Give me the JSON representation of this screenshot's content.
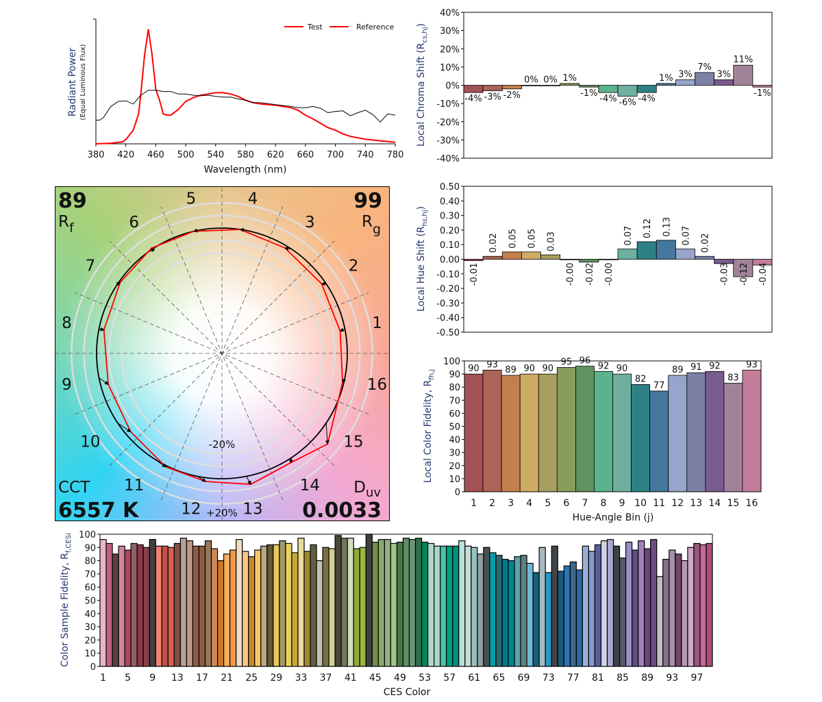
{
  "chart_data": [
    {
      "type": "line",
      "xlabel": "Wavelength (nm)",
      "ylabel": "Radiant Power",
      "ylabel_sub": "(Equal Luminous Flux)",
      "xlim": [
        380,
        780
      ],
      "x_ticks": [
        "380",
        "420",
        "460",
        "500",
        "540",
        "580",
        "620",
        "660",
        "700",
        "740",
        "780"
      ],
      "legend": {
        "placement": "top-right",
        "entries": [
          "Test",
          "Reference"
        ]
      },
      "series": [
        {
          "name": "Test",
          "color": "#ff0000",
          "x": [
            380,
            400,
            415,
            420,
            430,
            437,
            440,
            445,
            450,
            455,
            460,
            465,
            470,
            475,
            480,
            490,
            500,
            510,
            520,
            530,
            540,
            550,
            560,
            570,
            580,
            590,
            600,
            620,
            640,
            650,
            660,
            670,
            680,
            690,
            700,
            710,
            720,
            740,
            760,
            780
          ],
          "y": [
            0,
            0.005,
            0.015,
            0.033,
            0.11,
            0.24,
            0.4,
            0.71,
            0.92,
            0.72,
            0.44,
            0.35,
            0.24,
            0.23,
            0.23,
            0.275,
            0.34,
            0.37,
            0.39,
            0.4,
            0.41,
            0.41,
            0.4,
            0.38,
            0.35,
            0.33,
            0.32,
            0.31,
            0.29,
            0.27,
            0.23,
            0.2,
            0.165,
            0.13,
            0.11,
            0.08,
            0.06,
            0.037,
            0.024,
            0.013
          ]
        },
        {
          "name": "Reference",
          "color": "#000000",
          "x": [
            380,
            385,
            390,
            400,
            410,
            420,
            430,
            440,
            450,
            460,
            470,
            480,
            490,
            500,
            510,
            520,
            530,
            540,
            550,
            560,
            570,
            580,
            590,
            600,
            620,
            640,
            650,
            660,
            670,
            680,
            690,
            700,
            710,
            720,
            730,
            740,
            750,
            760,
            770,
            780
          ],
          "y": [
            0.19,
            0.19,
            0.21,
            0.3,
            0.34,
            0.345,
            0.32,
            0.39,
            0.43,
            0.43,
            0.42,
            0.42,
            0.4,
            0.4,
            0.39,
            0.385,
            0.39,
            0.38,
            0.375,
            0.375,
            0.36,
            0.35,
            0.33,
            0.33,
            0.315,
            0.3,
            0.29,
            0.29,
            0.3,
            0.285,
            0.25,
            0.26,
            0.265,
            0.225,
            0.25,
            0.27,
            0.235,
            0.175,
            0.24,
            0.23
          ]
        }
      ]
    },
    {
      "type": "bar",
      "ylabel": "Local Chroma Shift (R",
      "ylabel_sub": "cs,hj",
      "ylabel_after": ")",
      "ylim": [
        -40,
        40
      ],
      "y_ticks": [
        "40%",
        "30%",
        "20%",
        "10%",
        "0%",
        "-10%",
        "-20%",
        "-30%",
        "-40%"
      ],
      "values": [
        -4,
        -3,
        -2,
        0,
        0,
        1,
        -1,
        -4,
        -6,
        -4,
        1,
        3,
        7,
        3,
        11,
        -1
      ],
      "value_labels": [
        "-4%",
        "-3%",
        "-2%",
        "0%",
        "0%",
        "1%",
        "-1%",
        "-4%",
        "-6%",
        "-4%",
        "1%",
        "3%",
        "7%",
        "3%",
        "11%",
        "-1%"
      ]
    },
    {
      "type": "bar",
      "ylabel": "Local Hue Shift (R",
      "ylabel_sub": "hs,hj",
      "ylabel_after": ")",
      "ylim": [
        -0.5,
        0.5
      ],
      "y_ticks": [
        "0.50",
        "0.40",
        "0.30",
        "0.20",
        "0.10",
        "0.00",
        "-0.10",
        "-0.20",
        "-0.30",
        "-0.40",
        "-0.50"
      ],
      "values": [
        -0.01,
        0.02,
        0.05,
        0.05,
        0.03,
        0,
        -0.02,
        0,
        0.07,
        0.12,
        0.13,
        0.07,
        0.02,
        -0.03,
        -0.12,
        -0.04
      ],
      "value_labels": [
        "-0.01",
        "0.02",
        "0.05",
        "0.05",
        "0.03",
        "-0.00",
        "-0.02",
        "-0.00",
        "0.07",
        "0.12",
        "0.13",
        "0.07",
        "0.02",
        "-0.03",
        "-0.12",
        "-0.04"
      ]
    },
    {
      "type": "bar",
      "xlabel": "Hue-Angle Bin (j)",
      "ylabel": "Local Color Fidelity, R",
      "ylabel_sub": "fh,j",
      "ylim": [
        0,
        100
      ],
      "y_ticks": [
        "100",
        "90",
        "80",
        "70",
        "60",
        "50",
        "40",
        "30",
        "20",
        "10",
        "0"
      ],
      "categories": [
        "1",
        "2",
        "3",
        "4",
        "5",
        "6",
        "7",
        "8",
        "9",
        "10",
        "11",
        "12",
        "13",
        "14",
        "15",
        "16"
      ],
      "values": [
        90,
        93,
        89,
        90,
        90,
        95,
        96,
        92,
        90,
        82,
        77,
        89,
        91,
        92,
        83,
        93
      ],
      "value_labels": [
        "90",
        "93",
        "89",
        "90",
        "90",
        "95",
        "96",
        "92",
        "90",
        "82",
        "77",
        "89",
        "91",
        "92",
        "83",
        "93"
      ]
    },
    {
      "type": "bar",
      "xlabel": "CES Color",
      "ylabel": "Color Sample Fidelity, R",
      "ylabel_sub": "f,CESi",
      "ylim": [
        0,
        100
      ],
      "y_ticks": [
        "100",
        "90",
        "80",
        "70",
        "60",
        "50",
        "40",
        "30",
        "20",
        "10",
        "0"
      ],
      "x_ticks": [
        "1",
        "5",
        "9",
        "13",
        "17",
        "21",
        "25",
        "29",
        "33",
        "37",
        "41",
        "45",
        "49",
        "53",
        "57",
        "61",
        "65",
        "69",
        "73",
        "77",
        "81",
        "85",
        "89",
        "93",
        "97"
      ],
      "values": [
        96,
        93,
        85,
        91,
        88,
        93,
        92,
        90,
        96,
        91,
        91,
        90,
        93,
        97,
        95,
        91,
        91,
        95,
        89,
        80,
        85,
        88,
        96,
        87,
        83,
        88,
        91,
        92,
        92,
        95,
        93,
        86,
        97,
        87,
        92,
        80,
        90,
        89,
        99,
        97,
        97,
        89,
        90,
        100,
        94,
        96,
        96,
        93,
        94,
        97,
        96,
        97,
        94,
        93,
        91,
        91,
        91,
        91,
        95,
        91,
        90,
        85,
        90,
        86,
        84,
        81,
        80,
        83,
        84,
        78,
        71,
        90,
        71,
        91,
        72,
        76,
        79,
        73,
        91,
        87,
        92,
        95,
        96,
        91,
        82,
        94,
        88,
        95,
        89,
        96,
        68,
        81,
        88,
        85,
        80,
        90,
        93,
        92,
        93
      ],
      "colors": [
        "#e8b8c8",
        "#c06080",
        "#5a4040",
        "#d08898",
        "#a84860",
        "#906068",
        "#8c3848",
        "#884048",
        "#404040",
        "#f08070",
        "#c05048",
        "#d86050",
        "#805040",
        "#b8a098",
        "#c09888",
        "#8c5c44",
        "#8c5c44",
        "#98785c",
        "#d08858",
        "#c87828",
        "#f8b060",
        "#f09848",
        "#f0dcc0",
        "#f8c888",
        "#c88828",
        "#f8c868",
        "#b8a880",
        "#605838",
        "#e8c858",
        "#a09868",
        "#e8d060",
        "#c8a838",
        "#e8dc98",
        "#a08830",
        "#606040",
        "#c0c0b0",
        "#787040",
        "#d0d098",
        "#484838",
        "#707858",
        "#d0dcc0",
        "#90a838",
        "#98b840",
        "#404040",
        "#709048",
        "#88a870",
        "#90b080",
        "#98c888",
        "#4c7448",
        "#5c8c68",
        "#6c9478",
        "#306c48",
        "#008858",
        "#b0d8c8",
        "#a8d8c8",
        "#48c0a8",
        "#00a080",
        "#009080",
        "#b8e0d8",
        "#c8dcd8",
        "#98c0c0",
        "#90a0a0",
        "#485050",
        "#00a0a8",
        "#306870",
        "#007890",
        "#008890",
        "#60a0b0",
        "#608080",
        "#70b8d8",
        "#186078",
        "#a8b8c0",
        "#2898c8",
        "#404448",
        "#205878",
        "#2878b8",
        "#406888",
        "#2868a8",
        "#98b0d8",
        "#8898c8",
        "#5860a0",
        "#d0d4e8",
        "#a8a8d0",
        "#404048",
        "#585868",
        "#9890c8",
        "#604c80",
        "#a080b8",
        "#684878",
        "#704c84",
        "#c0c0c0",
        "#887088",
        "#a890a8",
        "#704868",
        "#b898b0",
        "#d0a8c8",
        "#985880",
        "#c86898",
        "#a85078"
      ]
    }
  ],
  "bin_colors": [
    "#a35057",
    "#ab6456",
    "#c47f4f",
    "#cfac63",
    "#a89e5d",
    "#889d5a",
    "#5f925e",
    "#5ab38b",
    "#6eb0a0",
    "#2e8084",
    "#43789c",
    "#97a5cd",
    "#7e7fa4",
    "#7a5b8f",
    "#a28299",
    "#c47e9b"
  ],
  "vector_graphic": {
    "bin_labels": [
      "1",
      "2",
      "3",
      "4",
      "5",
      "6",
      "7",
      "8",
      "9",
      "10",
      "11",
      "12",
      "13",
      "14",
      "15",
      "16"
    ],
    "rf_value": "89",
    "rf_label": "R",
    "rf_sub": "f",
    "rg_value": "99",
    "rg_label": "R",
    "rg_sub": "g",
    "cct_label": "CCT",
    "cct_value": "6557 K",
    "duv_label": "D",
    "duv_sub": "uv",
    "duv_value": "0.0033",
    "ring_minus": "-20%",
    "ring_plus": "+20%",
    "reference_color": "#000000",
    "test_color": "#ff0000"
  }
}
